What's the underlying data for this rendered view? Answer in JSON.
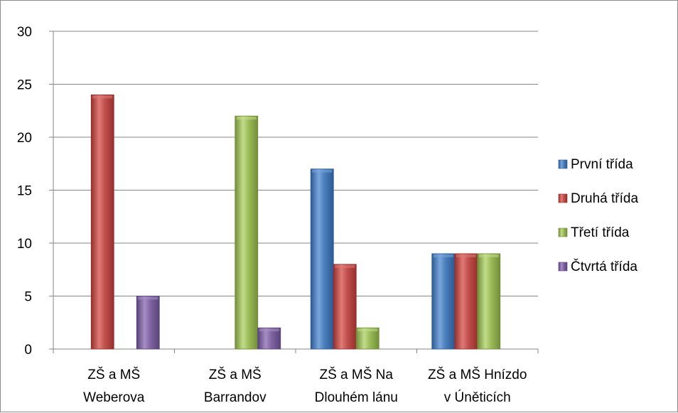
{
  "chart_data": {
    "type": "bar",
    "title": "",
    "xlabel": "",
    "ylabel": "",
    "ylim": [
      0,
      30
    ],
    "yticks": [
      0,
      5,
      10,
      15,
      20,
      25,
      30
    ],
    "grid": true,
    "legend_position": "right",
    "categories": [
      [
        "ZŠ a MŠ",
        "Weberova"
      ],
      [
        "ZŠ a MŠ",
        "Barrandov"
      ],
      [
        "ZŠ a MŠ Na",
        "Dlouhém lánu"
      ],
      [
        "ZŠ a MŠ Hnízdo",
        "v Úněticích"
      ]
    ],
    "series": [
      {
        "name": "První třída",
        "color": "#4a7ebb",
        "dark": "#2c5a94",
        "light": "#7aa6dc",
        "values": [
          null,
          null,
          17,
          9
        ]
      },
      {
        "name": "Druhá třída",
        "color": "#c0504d",
        "dark": "#962f2c",
        "light": "#e07a77",
        "values": [
          24,
          null,
          8,
          9
        ]
      },
      {
        "name": "Třetí třída",
        "color": "#9bbb59",
        "dark": "#728e38",
        "light": "#c2dc8a",
        "values": [
          null,
          22,
          2,
          9
        ]
      },
      {
        "name": "Čtvrtá třída",
        "color": "#8064a2",
        "dark": "#5a437a",
        "light": "#a68ec4",
        "values": [
          5,
          2,
          null,
          null
        ]
      }
    ]
  }
}
